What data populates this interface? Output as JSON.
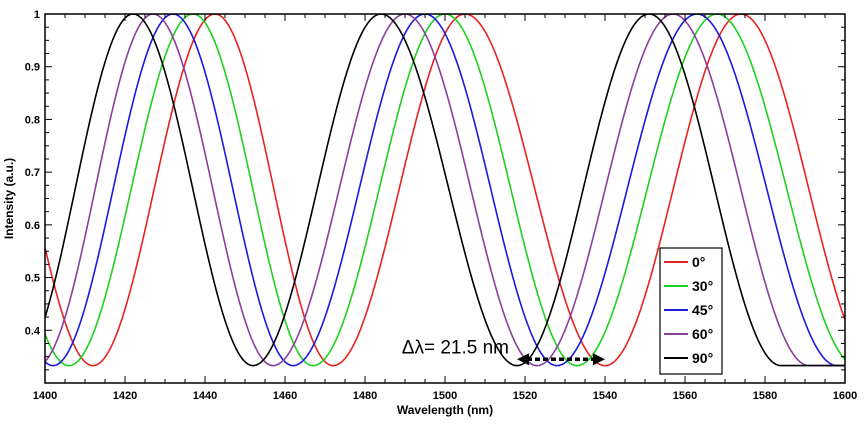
{
  "chart_data": {
    "type": "line",
    "title": "",
    "xlabel": "Wavelength (nm)",
    "ylabel": "Intensity (a.u.)",
    "xlim": [
      1400,
      1600
    ],
    "ylim": [
      0.3,
      1.0
    ],
    "xticks": [
      1400,
      1420,
      1440,
      1460,
      1480,
      1500,
      1520,
      1540,
      1560,
      1580,
      1600
    ],
    "xtick_labels": [
      "1400",
      "1420",
      "1440",
      "1460",
      "1480",
      "1500",
      "1520",
      "1540",
      "1560",
      "1580",
      "1600"
    ],
    "yticks": [
      0.4,
      0.5,
      0.6,
      0.7,
      0.8,
      0.9,
      1.0
    ],
    "ytick_labels": [
      "0.4",
      "0.5",
      "0.6",
      "0.7",
      "0.8",
      "0.9",
      "1"
    ],
    "grid": false,
    "legend_position": "right",
    "series": [
      {
        "name": "0°",
        "color": "#e8231f",
        "min_y": 0.333,
        "max_y": 1.0,
        "peaks": [
          1442.5,
          1505,
          1574
        ],
        "troughs": [
          1412,
          1472,
          1540
        ]
      },
      {
        "name": "30°",
        "color": "#1fd11f",
        "min_y": 0.333,
        "max_y": 1.0,
        "peaks": [
          1437,
          1500,
          1568
        ],
        "troughs": [
          1406,
          1467,
          1533
        ]
      },
      {
        "name": "45°",
        "color": "#1a1ae0",
        "min_y": 0.333,
        "max_y": 1.0,
        "peaks": [
          1432,
          1495,
          1563
        ],
        "troughs": [
          1402,
          1462,
          1528
        ]
      },
      {
        "name": "60°",
        "color": "#8a3f9e",
        "min_y": 0.333,
        "max_y": 1.0,
        "peaks": [
          1427,
          1490,
          1557
        ],
        "troughs": [
          1398,
          1457,
          1523
        ]
      },
      {
        "name": "90°",
        "color": "#000000",
        "min_y": 0.333,
        "max_y": 1.0,
        "peaks": [
          1422,
          1484,
          1551
        ],
        "troughs": [
          1393,
          1452,
          1518
        ]
      }
    ],
    "annotations": [
      {
        "text": "Δλ= 21.5 nm",
        "x_start": 1518,
        "x_end": 1540,
        "y": 0.345
      }
    ]
  }
}
